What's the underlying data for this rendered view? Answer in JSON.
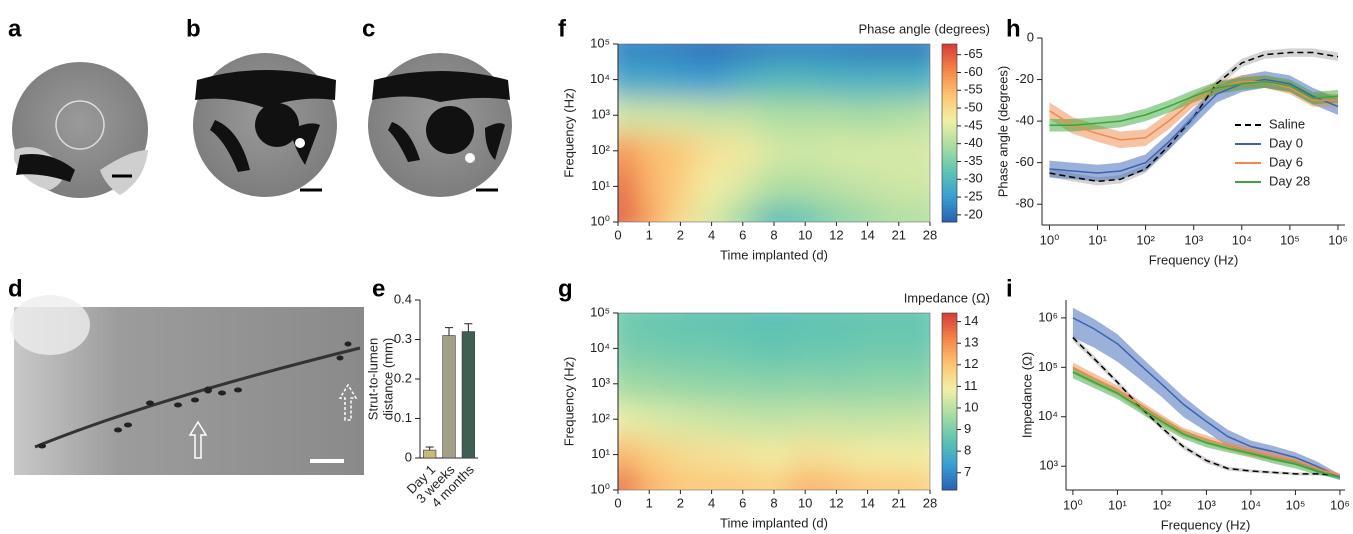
{
  "image_panels": [
    {
      "label": "a"
    },
    {
      "label": "b"
    },
    {
      "label": "c"
    },
    {
      "label": "d"
    }
  ],
  "chart_data": [
    {
      "type": "bar",
      "panel": "e",
      "ylabel": [
        "Strut-to-lumen",
        "distance (mm)"
      ],
      "categories": [
        "Day 1",
        "3 weeks",
        "4 months"
      ],
      "values": [
        0.02,
        0.31,
        0.32
      ],
      "errors": [
        0.008,
        0.02,
        0.02
      ],
      "colors": [
        "#c8b878",
        "#a19f88",
        "#3f5f53"
      ],
      "ylim": [
        0,
        0.4
      ],
      "yticks": [
        0,
        0.1,
        0.2,
        0.3,
        0.4
      ]
    },
    {
      "type": "heatmap",
      "panel": "f",
      "colorbar_title": "Phase angle (degrees)",
      "xlabel": "Time implanted (d)",
      "ylabel": "Frequency (Hz)",
      "categories": [
        "0",
        "1",
        "2",
        "4",
        "6",
        "8",
        "10",
        "12",
        "14",
        "21",
        "28"
      ],
      "y": [
        1,
        10,
        100,
        1000,
        10000,
        100000
      ],
      "log_y": true,
      "ylim": [
        1,
        100000
      ],
      "yticks": [
        {
          "value": 1,
          "label": "10⁰"
        },
        {
          "value": 10,
          "label": "10¹"
        },
        {
          "value": 100,
          "label": "10²"
        },
        {
          "value": 1000,
          "label": "10³"
        },
        {
          "value": 10000,
          "label": "10⁴"
        },
        {
          "value": 100000,
          "label": "10⁵"
        }
      ],
      "z": [
        [
          -66,
          -58,
          -50,
          -44,
          -38,
          -30,
          -32,
          -36,
          -38,
          -40,
          -40
        ],
        [
          -65,
          -56,
          -52,
          -47,
          -44,
          -40,
          -40,
          -41,
          -42,
          -43,
          -43
        ],
        [
          -60,
          -55,
          -53,
          -49,
          -48,
          -44,
          -43,
          -44,
          -44,
          -44,
          -44
        ],
        [
          -44,
          -43,
          -43,
          -42,
          -42,
          -40,
          -40,
          -40,
          -39,
          -40,
          -41
        ],
        [
          -27,
          -27,
          -26,
          -25,
          -28,
          -30,
          -30,
          -29,
          -29,
          -29,
          -29
        ],
        [
          -22,
          -22,
          -21,
          -20,
          -21,
          -22,
          -22,
          -22,
          -21,
          -21,
          -21
        ]
      ],
      "clim": [
        -18,
        -68
      ],
      "cticks": [
        -65,
        -60,
        -55,
        -50,
        -45,
        -40,
        -35,
        -30,
        -25,
        -20
      ],
      "colormap": [
        "#2a5fae",
        "#3a9dd2",
        "#5fc4b2",
        "#a9dca3",
        "#f1f0a8",
        "#fdc474",
        "#f4854a",
        "#d43d3a"
      ]
    },
    {
      "type": "heatmap",
      "panel": "g",
      "colorbar_title": "Impedance (Ω)",
      "xlabel": "Time implanted (d)",
      "ylabel": "Frequency (Hz)",
      "categories": [
        "0",
        "1",
        "2",
        "4",
        "6",
        "8",
        "10",
        "12",
        "14",
        "21",
        "28"
      ],
      "y": [
        1,
        10,
        100,
        1000,
        10000,
        100000
      ],
      "log_y": true,
      "ylim": [
        1,
        100000
      ],
      "yticks": [
        {
          "value": 1,
          "label": "10⁰"
        },
        {
          "value": 10,
          "label": "10¹"
        },
        {
          "value": 100,
          "label": "10²"
        },
        {
          "value": 1000,
          "label": "10³"
        },
        {
          "value": 10000,
          "label": "10⁴"
        },
        {
          "value": 100000,
          "label": "10⁵"
        }
      ],
      "z": [
        [
          14,
          12.5,
          12,
          12,
          12,
          11.8,
          12.5,
          12.3,
          12,
          12,
          11.8
        ],
        [
          12.5,
          11.8,
          11.5,
          11.3,
          11.2,
          11,
          11.3,
          11.2,
          11,
          11,
          11
        ],
        [
          10.8,
          10.6,
          10.4,
          10.3,
          10.2,
          10.1,
          10.2,
          10.2,
          10.1,
          10.2,
          10.2
        ],
        [
          9.6,
          9.5,
          9.4,
          9.3,
          9.3,
          9.2,
          9.3,
          9.2,
          9.3,
          9.3,
          9.3
        ],
        [
          9,
          8.9,
          8.8,
          8.8,
          8.7,
          8.6,
          8.7,
          8.7,
          8.8,
          8.8,
          8.8
        ],
        [
          8.8,
          8.7,
          8.6,
          8.5,
          8.5,
          8.4,
          8.5,
          8.5,
          8.6,
          8.6,
          8.6
        ]
      ],
      "clim": [
        6.2,
        14.4
      ],
      "cticks": [
        7,
        8,
        9,
        10,
        11,
        12,
        13,
        14
      ],
      "colormap": [
        "#2a5fae",
        "#3a9dd2",
        "#5fc4b2",
        "#a9dca3",
        "#f1f0a8",
        "#fdc474",
        "#f4854a",
        "#d43d3a"
      ]
    },
    {
      "type": "line",
      "panel": "h",
      "xlabel": "Frequency (Hz)",
      "ylabel": "Phase angle (degrees)",
      "x": [
        1,
        3,
        10,
        30,
        100,
        300,
        1000,
        3000,
        10000,
        30000,
        100000,
        300000,
        1000000
      ],
      "log_x": true,
      "xlim": [
        0.7,
        1400000
      ],
      "xticks": [
        {
          "value": 1,
          "label": "10⁰"
        },
        {
          "value": 10,
          "label": "10¹"
        },
        {
          "value": 100,
          "label": "10²"
        },
        {
          "value": 1000,
          "label": "10³"
        },
        {
          "value": 10000,
          "label": "10⁴"
        },
        {
          "value": 100000,
          "label": "10⁵"
        },
        {
          "value": 1000000,
          "label": "10⁶"
        }
      ],
      "ylim": [
        -90,
        0
      ],
      "yticks": [
        0,
        -20,
        -40,
        -60,
        -80
      ],
      "legend": "lower right",
      "series": [
        {
          "name": "Saline",
          "color": "#000000",
          "dashed": true,
          "values": [
            -65,
            -67,
            -69,
            -68,
            -63,
            -52,
            -38,
            -22,
            -12,
            -8,
            -7,
            -7,
            -9
          ],
          "errors": [
            2,
            2,
            2,
            2,
            2,
            2,
            2,
            2,
            2,
            2,
            2,
            2,
            2
          ]
        },
        {
          "name": "Day 0",
          "color": "#3a63b4",
          "values": [
            -63,
            -64,
            -65,
            -64,
            -60,
            -50,
            -38,
            -27,
            -22,
            -20,
            -22,
            -28,
            -33
          ],
          "errors": [
            4,
            4,
            4,
            4,
            4,
            4,
            4,
            4,
            4,
            4,
            4,
            4,
            4
          ]
        },
        {
          "name": "Day 6",
          "color": "#ee8a4c",
          "values": [
            -35,
            -42,
            -46,
            -49,
            -48,
            -40,
            -30,
            -24,
            -21,
            -21,
            -24,
            -30,
            -30
          ],
          "errors": [
            4,
            4,
            4,
            4,
            4,
            4,
            3,
            3,
            3,
            3,
            3,
            3,
            3
          ]
        },
        {
          "name": "Day 28",
          "color": "#3aa63a",
          "values": [
            -42,
            -42,
            -41,
            -40,
            -37,
            -33,
            -28,
            -24,
            -22,
            -21,
            -23,
            -29,
            -28
          ],
          "errors": [
            3,
            3,
            3,
            3,
            3,
            3,
            3,
            3,
            3,
            3,
            3,
            3,
            3
          ]
        }
      ]
    },
    {
      "type": "line",
      "panel": "i",
      "xlabel": "Frequency (Hz)",
      "ylabel": "Impedance (Ω)",
      "x": [
        1,
        3,
        10,
        30,
        100,
        300,
        1000,
        3000,
        10000,
        30000,
        100000,
        300000,
        1000000
      ],
      "log_x": true,
      "xlim": [
        0.7,
        1300000
      ],
      "xticks": [
        {
          "value": 1,
          "label": "10⁰"
        },
        {
          "value": 10,
          "label": "10¹"
        },
        {
          "value": 100,
          "label": "10²"
        },
        {
          "value": 1000,
          "label": "10³"
        },
        {
          "value": 10000,
          "label": "10⁴"
        },
        {
          "value": 100000,
          "label": "10⁵"
        },
        {
          "value": 1000000,
          "label": "10⁶"
        }
      ],
      "log_y": true,
      "ylim": [
        330,
        2300000
      ],
      "yticks": [
        {
          "value": 1000,
          "label": "10³"
        },
        {
          "value": 10000,
          "label": "10⁴"
        },
        {
          "value": 100000,
          "label": "10⁵"
        },
        {
          "value": 1000000,
          "label": "10⁶"
        }
      ],
      "series": [
        {
          "color": "#000000",
          "dashed": true,
          "values": [
            400000,
            150000,
            50000,
            17000,
            6000,
            2500,
            1300,
            900,
            800,
            750,
            700,
            700,
            650
          ],
          "errors": [
            60000,
            20000,
            6000,
            2000,
            700,
            300,
            150,
            80,
            60,
            50,
            50,
            50,
            40
          ]
        },
        {
          "color": "#3a63b4",
          "values": [
            1000000,
            600000,
            300000,
            120000,
            45000,
            18000,
            8000,
            4000,
            2500,
            2000,
            1500,
            1000,
            600
          ],
          "errors": [
            600000,
            350000,
            170000,
            60000,
            20000,
            8000,
            3000,
            1500,
            800,
            600,
            400,
            250,
            80
          ]
        },
        {
          "color": "#ee8a4c",
          "values": [
            100000,
            60000,
            35000,
            18000,
            9000,
            5000,
            3500,
            2600,
            2000,
            1600,
            1300,
            900,
            650
          ],
          "errors": [
            25000,
            15000,
            8000,
            4000,
            2000,
            1000,
            700,
            500,
            400,
            300,
            250,
            150,
            60
          ]
        },
        {
          "color": "#3aa63a",
          "values": [
            80000,
            50000,
            30000,
            16000,
            8000,
            4500,
            3000,
            2300,
            1800,
            1400,
            1100,
            800,
            600
          ],
          "errors": [
            20000,
            12000,
            7000,
            3500,
            1800,
            900,
            600,
            400,
            300,
            250,
            200,
            120,
            50
          ]
        }
      ]
    }
  ]
}
